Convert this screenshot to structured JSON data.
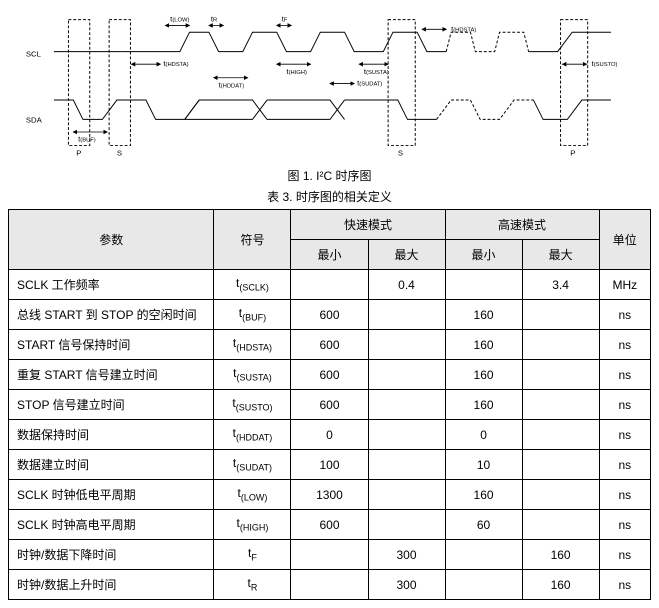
{
  "diagram": {
    "scl_label": "SCL",
    "sda_label": "SDA",
    "markers": {
      "P_left": "P",
      "S_left": "S",
      "S_right": "S",
      "P_right": "P"
    },
    "timing_labels": {
      "tLOW": "t",
      "tLOW_sub": "(LOW)",
      "tR": "t",
      "tR_sub": "R",
      "tF": "t",
      "tF_sub": "F",
      "tHDSTA_top": "t",
      "tHDSTA_top_sub": "(HDSTA)",
      "tHDSTA": "t",
      "tHDSTA_sub": "(HDSTA)",
      "tHDDAT": "t",
      "tHDDAT_sub": "(HDDAT)",
      "tHIGH": "t",
      "tHIGH_sub": "(HIGH)",
      "tSUSTA": "t",
      "tSUSTA_sub": "(SUSTA)",
      "tSUDAT": "t",
      "tSUDAT_sub": "(SUDAT)",
      "tSUSTO": "t",
      "tSUSTO_sub": "(SUSTO)",
      "tBUF": "t",
      "tBUF_sub": "(BUF)"
    },
    "caption": "图 1. I²C 时序图"
  },
  "table": {
    "caption": "表 3. 时序图的相关定义",
    "headers": {
      "param": "参数",
      "symbol": "符号",
      "fast_mode": "快速模式",
      "hs_mode": "高速模式",
      "min": "最小",
      "max": "最大",
      "unit": "单位"
    },
    "rows": [
      {
        "param": "SCLK 工作频率",
        "sym": "t",
        "sub": "(SCLK)",
        "fmin": "",
        "fmax": "0.4",
        "hmin": "",
        "hmax": "3.4",
        "unit": "MHz"
      },
      {
        "param": "总线 START 到 STOP 的空闲时间",
        "sym": "t",
        "sub": "(BUF)",
        "fmin": "600",
        "fmax": "",
        "hmin": "160",
        "hmax": "",
        "unit": "ns"
      },
      {
        "param": "START 信号保持时间",
        "sym": "t",
        "sub": "(HDSTA)",
        "fmin": "600",
        "fmax": "",
        "hmin": "160",
        "hmax": "",
        "unit": "ns"
      },
      {
        "param": "重复 START 信号建立时间",
        "sym": "t",
        "sub": "(SUSTA)",
        "fmin": "600",
        "fmax": "",
        "hmin": "160",
        "hmax": "",
        "unit": "ns"
      },
      {
        "param": "STOP 信号建立时间",
        "sym": "t",
        "sub": "(SUSTO)",
        "fmin": "600",
        "fmax": "",
        "hmin": "160",
        "hmax": "",
        "unit": "ns"
      },
      {
        "param": "数据保持时间",
        "sym": "t",
        "sub": "(HDDAT)",
        "fmin": "0",
        "fmax": "",
        "hmin": "0",
        "hmax": "",
        "unit": "ns"
      },
      {
        "param": "数据建立时间",
        "sym": "t",
        "sub": "(SUDAT)",
        "fmin": "100",
        "fmax": "",
        "hmin": "10",
        "hmax": "",
        "unit": "ns"
      },
      {
        "param": "SCLK 时钟低电平周期",
        "sym": "t",
        "sub": "(LOW)",
        "fmin": "1300",
        "fmax": "",
        "hmin": "160",
        "hmax": "",
        "unit": "ns"
      },
      {
        "param": "SCLK 时钟高电平周期",
        "sym": "t",
        "sub": "(HIGH)",
        "fmin": "600",
        "fmax": "",
        "hmin": "60",
        "hmax": "",
        "unit": "ns"
      },
      {
        "param": "时钟/数据下降时间",
        "sym": "t",
        "sub": "F",
        "fmin": "",
        "fmax": "300",
        "hmin": "",
        "hmax": "160",
        "unit": "ns"
      },
      {
        "param": "时钟/数据上升时间",
        "sym": "t",
        "sub": "R",
        "fmin": "",
        "fmax": "300",
        "hmin": "",
        "hmax": "160",
        "unit": "ns"
      }
    ]
  }
}
